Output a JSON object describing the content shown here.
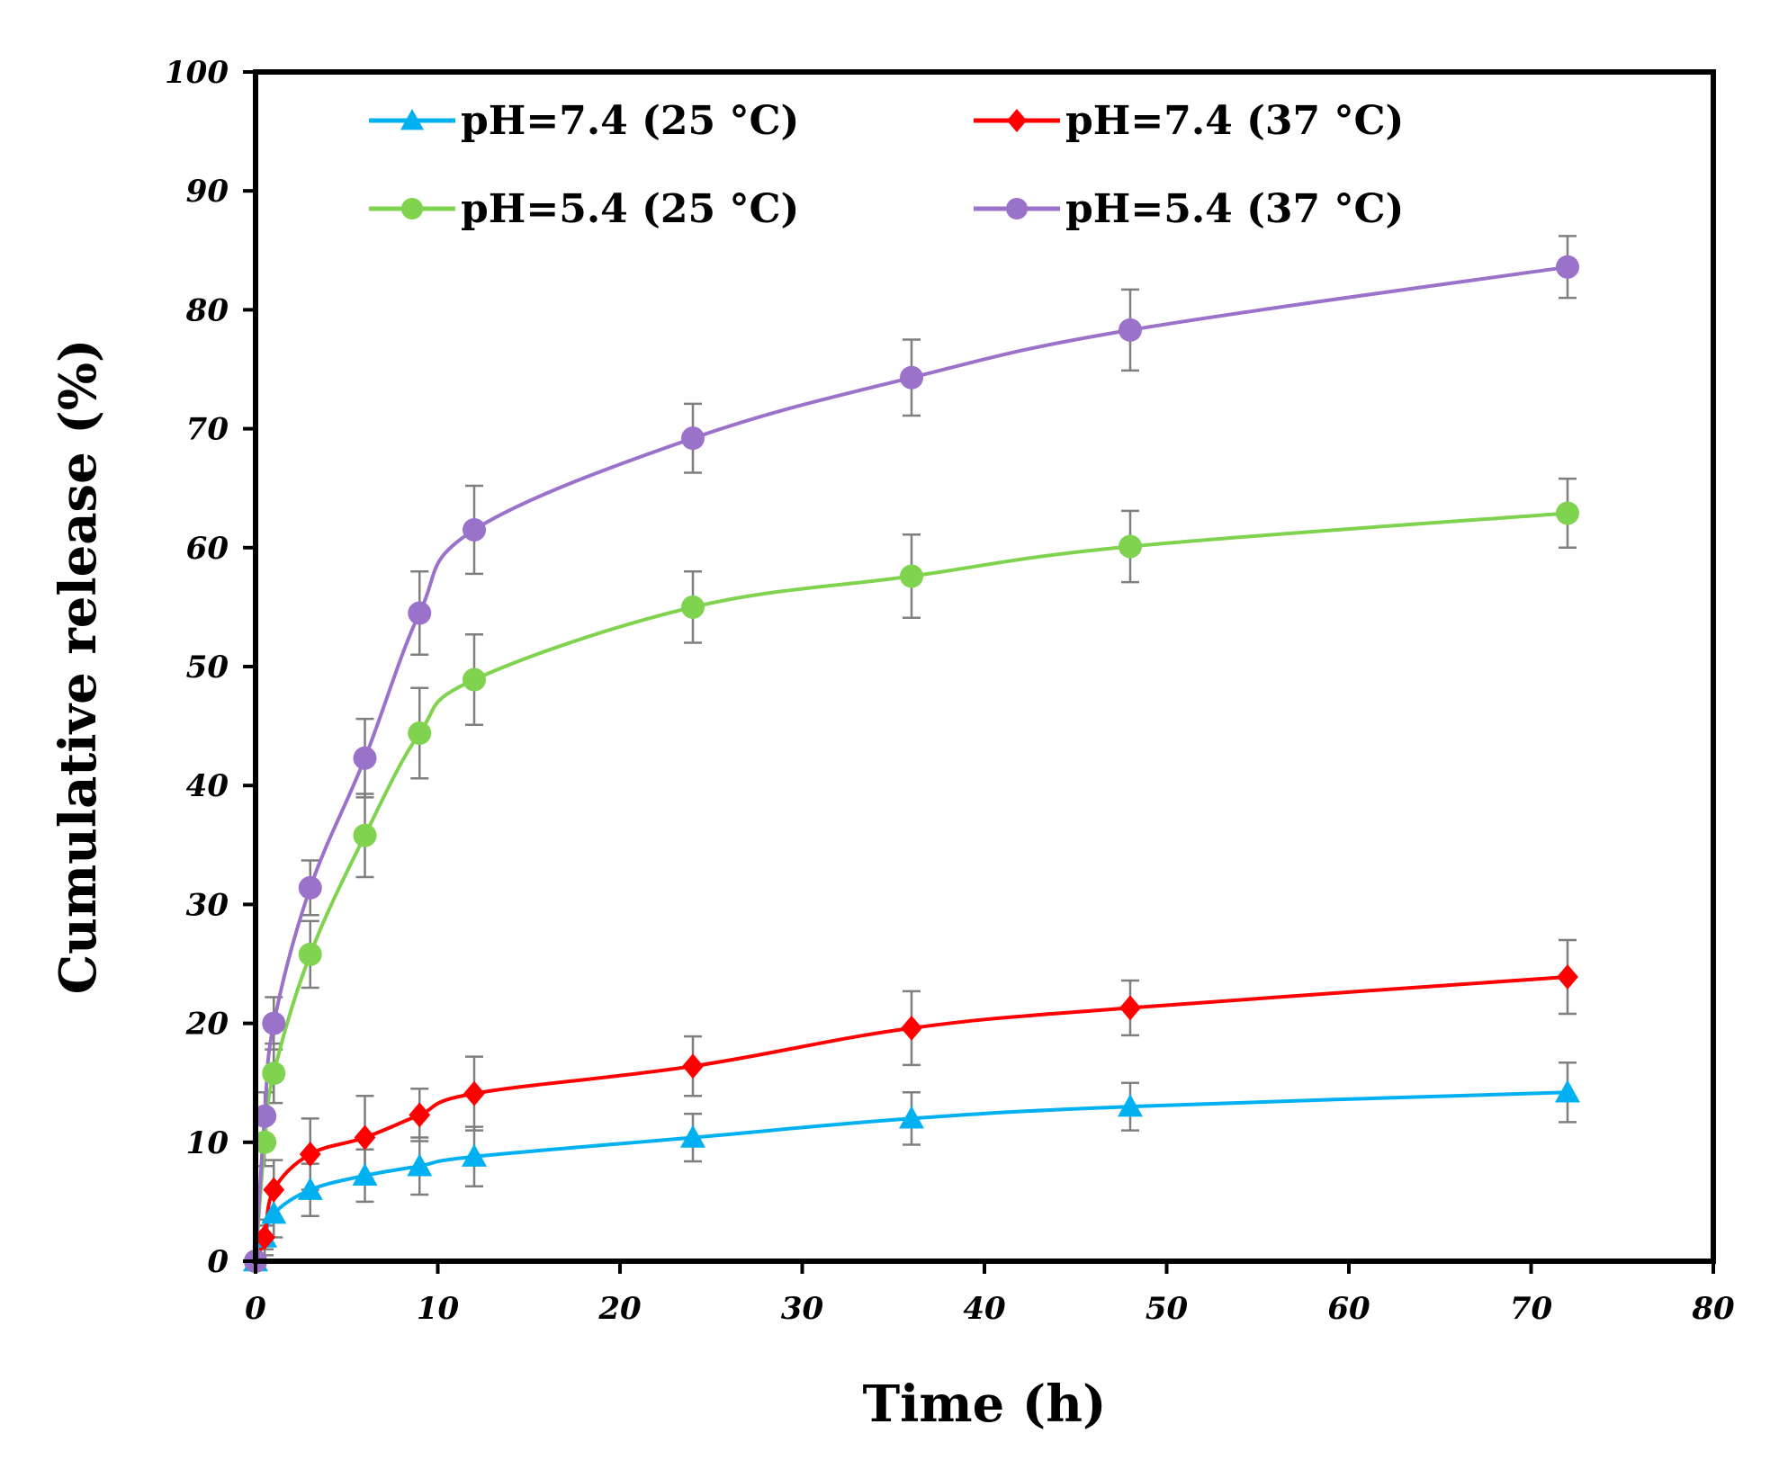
{
  "chart_data": {
    "type": "line",
    "title": "",
    "xlabel": "Time (h)",
    "ylabel": "Cumulative release (%)",
    "xlim": [
      0,
      80
    ],
    "ylim": [
      0,
      100
    ],
    "xticks": [
      0,
      10,
      20,
      30,
      40,
      50,
      60,
      70,
      80
    ],
    "yticks": [
      0,
      10,
      20,
      30,
      40,
      50,
      60,
      70,
      80,
      90,
      100
    ],
    "grid": false,
    "legend_position": "top",
    "x": [
      0,
      0.5,
      1,
      3,
      6,
      9,
      12,
      24,
      36,
      48,
      72
    ],
    "series": [
      {
        "name": "pH=7.4 (25 °C)",
        "color": "#00b0f0",
        "marker": "triangle",
        "values": [
          0,
          2,
          4,
          6,
          7.2,
          8,
          8.8,
          10.4,
          12,
          13,
          14.2
        ],
        "errors": [
          0,
          1,
          2,
          2.2,
          2.2,
          2.4,
          2.5,
          2,
          2.2,
          2,
          2.5
        ]
      },
      {
        "name": "pH=7.4 (37 °C)",
        "color": "#ff0000",
        "marker": "diamond",
        "values": [
          0,
          2,
          6,
          9,
          10.4,
          12.3,
          14.1,
          16.4,
          19.6,
          21.3,
          23.9
        ],
        "errors": [
          0,
          1.5,
          2.5,
          3,
          3.5,
          2.2,
          3.1,
          2.5,
          3.1,
          2.3,
          3.1
        ]
      },
      {
        "name": "pH=5.4 (25 °C)",
        "color": "#7fd34e",
        "marker": "circle",
        "values": [
          0,
          10,
          15.8,
          25.8,
          35.8,
          44.4,
          48.9,
          55,
          57.6,
          60.1,
          62.9
        ],
        "errors": [
          0,
          2,
          2.5,
          2.8,
          3.5,
          3.8,
          3.8,
          3,
          3.5,
          3,
          2.9
        ]
      },
      {
        "name": "pH=5.4 (37 °C)",
        "color": "#9b72c9",
        "marker": "circle",
        "values": [
          0,
          12.2,
          20,
          31.4,
          42.3,
          54.5,
          61.5,
          69.2,
          74.3,
          78.3,
          83.6
        ],
        "errors": [
          0,
          2,
          2.2,
          2.3,
          3.3,
          3.5,
          3.7,
          2.9,
          3.2,
          3.4,
          2.6
        ]
      }
    ]
  }
}
